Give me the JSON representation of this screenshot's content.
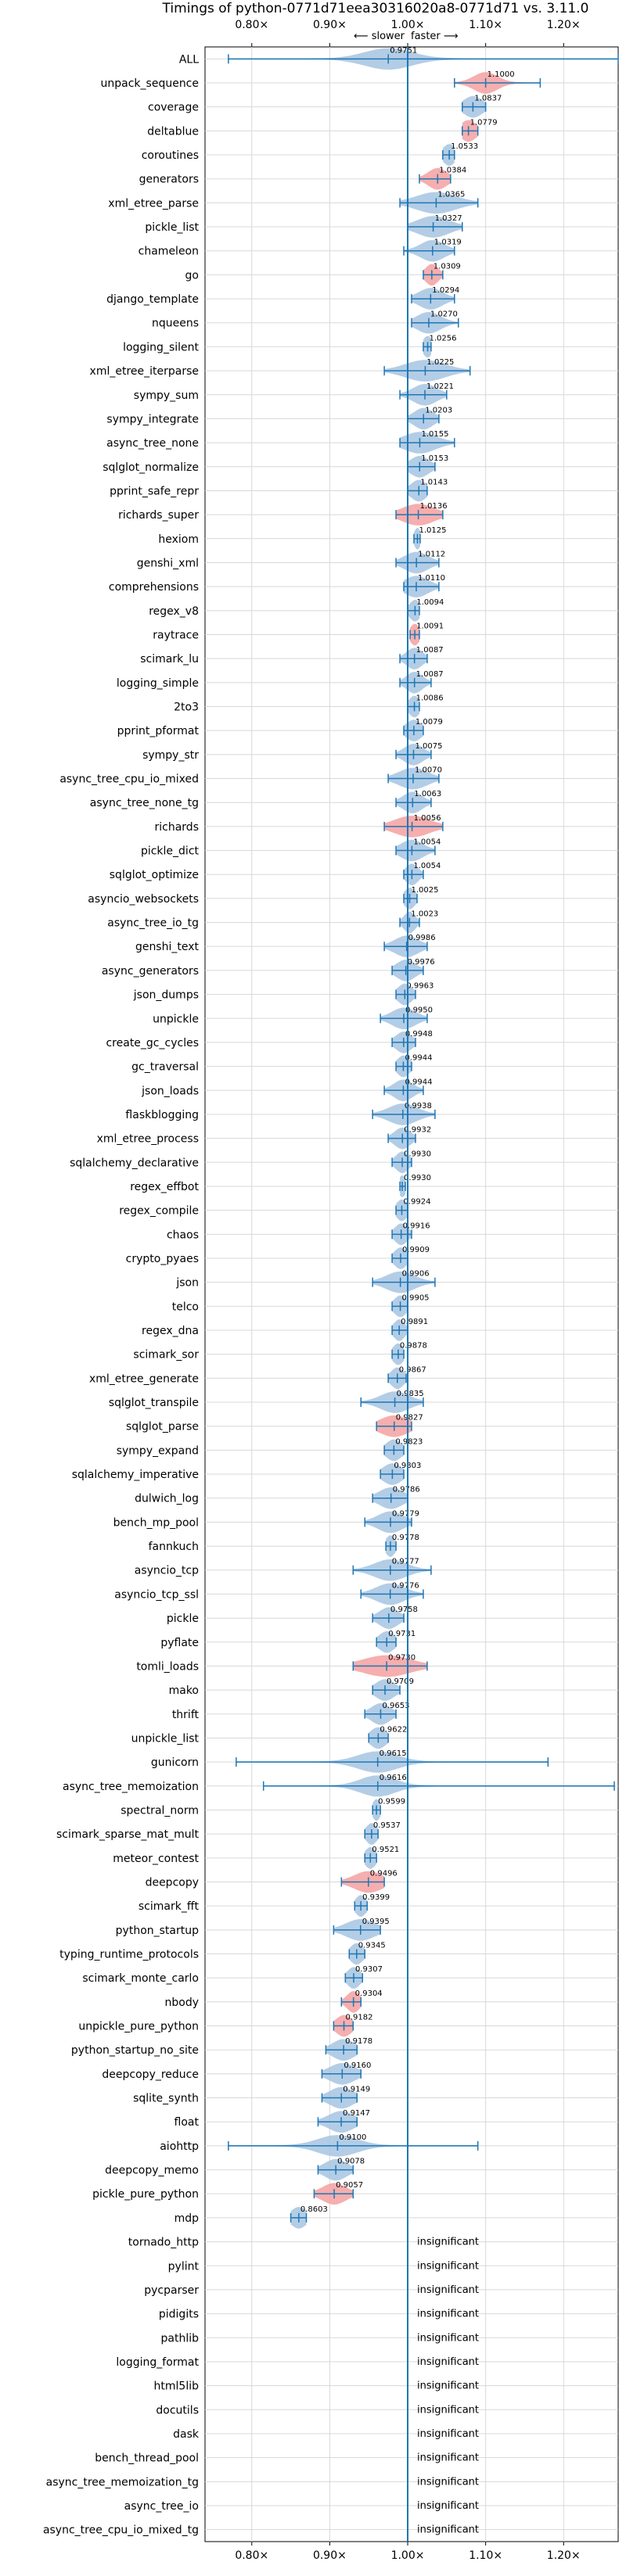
{
  "chart_data": {
    "type": "violin",
    "title": "Timings of python-0771d71eea30316020a8-0771d71 vs. 3.11.0",
    "direction_slower": "⟵ slower",
    "direction_faster": "faster ⟶",
    "xlim": [
      0.74,
      1.27
    ],
    "xticks": [
      0.8,
      0.9,
      1.0,
      1.1,
      1.2
    ],
    "xtick_labels": [
      "0.80×",
      "0.90×",
      "1.00×",
      "1.10×",
      "1.20×"
    ],
    "grid": true,
    "colors": {
      "normal": "#a6c4e2",
      "regression": "#f4a0a0",
      "line": "#1f77b4",
      "reference": "#1f77b4",
      "grid": "#d8d8d8",
      "text": "#000000"
    },
    "insignificant_label": "insignificant",
    "benchmarks": [
      {
        "name": "ALL",
        "value": 0.9751,
        "label": "0.9751",
        "lo": 0.77,
        "hi": 1.27,
        "spread": 0.03
      },
      {
        "name": "unpack_sequence",
        "value": 1.1,
        "label": "1.1000",
        "lo": 1.06,
        "hi": 1.17,
        "spread": 0.015,
        "regression": true
      },
      {
        "name": "coverage",
        "value": 1.0837,
        "label": "1.0837",
        "lo": 1.07,
        "hi": 1.1,
        "spread": 0.012
      },
      {
        "name": "deltablue",
        "value": 1.0779,
        "label": "1.0779",
        "lo": 1.07,
        "hi": 1.09,
        "spread": 0.01,
        "regression": true
      },
      {
        "name": "coroutines",
        "value": 1.0533,
        "label": "1.0533",
        "lo": 1.045,
        "hi": 1.06,
        "spread": 0.008
      },
      {
        "name": "generators",
        "value": 1.0384,
        "label": "1.0384",
        "lo": 1.015,
        "hi": 1.055,
        "spread": 0.012,
        "regression": true
      },
      {
        "name": "xml_etree_parse",
        "value": 1.0365,
        "label": "1.0365",
        "lo": 0.99,
        "hi": 1.09,
        "spread": 0.025
      },
      {
        "name": "pickle_list",
        "value": 1.0327,
        "label": "1.0327",
        "lo": 1.0,
        "hi": 1.07,
        "spread": 0.02
      },
      {
        "name": "chameleon",
        "value": 1.0319,
        "label": "1.0319",
        "lo": 0.995,
        "hi": 1.06,
        "spread": 0.015
      },
      {
        "name": "go",
        "value": 1.0309,
        "label": "1.0309",
        "lo": 1.02,
        "hi": 1.045,
        "spread": 0.008,
        "regression": true
      },
      {
        "name": "django_template",
        "value": 1.0294,
        "label": "1.0294",
        "lo": 1.005,
        "hi": 1.06,
        "spread": 0.015
      },
      {
        "name": "nqueens",
        "value": 1.027,
        "label": "1.0270",
        "lo": 1.005,
        "hi": 1.065,
        "spread": 0.015
      },
      {
        "name": "logging_silent",
        "value": 1.0256,
        "label": "1.0256",
        "lo": 1.02,
        "hi": 1.03,
        "spread": 0.006
      },
      {
        "name": "xml_etree_iterparse",
        "value": 1.0225,
        "label": "1.0225",
        "lo": 0.97,
        "hi": 1.08,
        "spread": 0.025
      },
      {
        "name": "sympy_sum",
        "value": 1.0221,
        "label": "1.0221",
        "lo": 0.99,
        "hi": 1.05,
        "spread": 0.015
      },
      {
        "name": "sympy_integrate",
        "value": 1.0203,
        "label": "1.0203",
        "lo": 1.0,
        "hi": 1.04,
        "spread": 0.012
      },
      {
        "name": "async_tree_none",
        "value": 1.0155,
        "label": "1.0155",
        "lo": 0.99,
        "hi": 1.06,
        "spread": 0.02
      },
      {
        "name": "sqlglot_normalize",
        "value": 1.0153,
        "label": "1.0153",
        "lo": 1.0,
        "hi": 1.035,
        "spread": 0.012
      },
      {
        "name": "pprint_safe_repr",
        "value": 1.0143,
        "label": "1.0143",
        "lo": 1.0,
        "hi": 1.025,
        "spread": 0.01
      },
      {
        "name": "richards_super",
        "value": 1.0136,
        "label": "1.0136",
        "lo": 0.985,
        "hi": 1.045,
        "spread": 0.02,
        "regression": true
      },
      {
        "name": "hexiom",
        "value": 1.0125,
        "label": "1.0125",
        "lo": 1.008,
        "hi": 1.016,
        "spread": 0.004
      },
      {
        "name": "genshi_xml",
        "value": 1.0112,
        "label": "1.0112",
        "lo": 0.985,
        "hi": 1.04,
        "spread": 0.015
      },
      {
        "name": "comprehensions",
        "value": 1.011,
        "label": "1.0110",
        "lo": 0.995,
        "hi": 1.04,
        "spread": 0.015
      },
      {
        "name": "regex_v8",
        "value": 1.0094,
        "label": "1.0094",
        "lo": 1.0,
        "hi": 1.015,
        "spread": 0.007
      },
      {
        "name": "raytrace",
        "value": 1.0091,
        "label": "1.0091",
        "lo": 1.003,
        "hi": 1.015,
        "spread": 0.006,
        "regression": true
      },
      {
        "name": "scimark_lu",
        "value": 1.0087,
        "label": "1.0087",
        "lo": 0.99,
        "hi": 1.025,
        "spread": 0.01
      },
      {
        "name": "logging_simple",
        "value": 1.0087,
        "label": "1.0087",
        "lo": 0.99,
        "hi": 1.03,
        "spread": 0.01
      },
      {
        "name": "2to3",
        "value": 1.0086,
        "label": "1.0086",
        "lo": 1.0,
        "hi": 1.015,
        "spread": 0.007
      },
      {
        "name": "pprint_pformat",
        "value": 1.0079,
        "label": "1.0079",
        "lo": 0.995,
        "hi": 1.02,
        "spread": 0.01
      },
      {
        "name": "sympy_str",
        "value": 1.0075,
        "label": "1.0075",
        "lo": 0.985,
        "hi": 1.03,
        "spread": 0.012
      },
      {
        "name": "async_tree_cpu_io_mixed",
        "value": 1.007,
        "label": "1.0070",
        "lo": 0.975,
        "hi": 1.04,
        "spread": 0.018
      },
      {
        "name": "async_tree_none_tg",
        "value": 1.0063,
        "label": "1.0063",
        "lo": 0.985,
        "hi": 1.03,
        "spread": 0.012
      },
      {
        "name": "richards",
        "value": 1.0056,
        "label": "1.0056",
        "lo": 0.97,
        "hi": 1.045,
        "spread": 0.022,
        "regression": true
      },
      {
        "name": "pickle_dict",
        "value": 1.0054,
        "label": "1.0054",
        "lo": 0.985,
        "hi": 1.035,
        "spread": 0.014
      },
      {
        "name": "sqlglot_optimize",
        "value": 1.0054,
        "label": "1.0054",
        "lo": 0.995,
        "hi": 1.02,
        "spread": 0.008
      },
      {
        "name": "asyncio_websockets",
        "value": 1.0025,
        "label": "1.0025",
        "lo": 0.995,
        "hi": 1.012,
        "spread": 0.007
      },
      {
        "name": "async_tree_io_tg",
        "value": 1.0023,
        "label": "1.0023",
        "lo": 0.99,
        "hi": 1.015,
        "spread": 0.007
      },
      {
        "name": "genshi_text",
        "value": 0.9986,
        "label": "0.9986",
        "lo": 0.97,
        "hi": 1.025,
        "spread": 0.015
      },
      {
        "name": "async_generators",
        "value": 0.9976,
        "label": "0.9976",
        "lo": 0.98,
        "hi": 1.02,
        "spread": 0.012
      },
      {
        "name": "json_dumps",
        "value": 0.9963,
        "label": "0.9963",
        "lo": 0.985,
        "hi": 1.01,
        "spread": 0.009
      },
      {
        "name": "unpickle",
        "value": 0.995,
        "label": "0.9950",
        "lo": 0.965,
        "hi": 1.025,
        "spread": 0.015
      },
      {
        "name": "create_gc_cycles",
        "value": 0.9948,
        "label": "0.9948",
        "lo": 0.98,
        "hi": 1.01,
        "spread": 0.01
      },
      {
        "name": "gc_traversal",
        "value": 0.9944,
        "label": "0.9944",
        "lo": 0.985,
        "hi": 1.005,
        "spread": 0.008
      },
      {
        "name": "json_loads",
        "value": 0.9944,
        "label": "0.9944",
        "lo": 0.97,
        "hi": 1.02,
        "spread": 0.012
      },
      {
        "name": "flaskblogging",
        "value": 0.9938,
        "label": "0.9938",
        "lo": 0.955,
        "hi": 1.035,
        "spread": 0.018
      },
      {
        "name": "xml_etree_process",
        "value": 0.9932,
        "label": "0.9932",
        "lo": 0.975,
        "hi": 1.01,
        "spread": 0.01
      },
      {
        "name": "sqlalchemy_declarative",
        "value": 0.993,
        "label": "0.9930",
        "lo": 0.98,
        "hi": 1.005,
        "spread": 0.008
      },
      {
        "name": "regex_effbot",
        "value": 0.993,
        "label": "0.9930",
        "lo": 0.99,
        "hi": 0.997,
        "spread": 0.005
      },
      {
        "name": "regex_compile",
        "value": 0.9924,
        "label": "0.9924",
        "lo": 0.985,
        "hi": 1.0,
        "spread": 0.007
      },
      {
        "name": "chaos",
        "value": 0.9916,
        "label": "0.9916",
        "lo": 0.98,
        "hi": 1.005,
        "spread": 0.008
      },
      {
        "name": "crypto_pyaes",
        "value": 0.9909,
        "label": "0.9909",
        "lo": 0.98,
        "hi": 1.0,
        "spread": 0.008
      },
      {
        "name": "json",
        "value": 0.9906,
        "label": "0.9906",
        "lo": 0.955,
        "hi": 1.035,
        "spread": 0.018
      },
      {
        "name": "telco",
        "value": 0.9905,
        "label": "0.9905",
        "lo": 0.98,
        "hi": 1.0,
        "spread": 0.008
      },
      {
        "name": "regex_dna",
        "value": 0.9891,
        "label": "0.9891",
        "lo": 0.98,
        "hi": 1.0,
        "spread": 0.007
      },
      {
        "name": "scimark_sor",
        "value": 0.9878,
        "label": "0.9878",
        "lo": 0.98,
        "hi": 0.995,
        "spread": 0.007
      },
      {
        "name": "xml_etree_generate",
        "value": 0.9867,
        "label": "0.9867",
        "lo": 0.975,
        "hi": 0.998,
        "spread": 0.008
      },
      {
        "name": "sqlglot_transpile",
        "value": 0.9835,
        "label": "0.9835",
        "lo": 0.94,
        "hi": 1.02,
        "spread": 0.018
      },
      {
        "name": "sqlglot_parse",
        "value": 0.9827,
        "label": "0.9827",
        "lo": 0.96,
        "hi": 1.005,
        "spread": 0.018,
        "regression": true
      },
      {
        "name": "sympy_expand",
        "value": 0.9823,
        "label": "0.9823",
        "lo": 0.97,
        "hi": 0.995,
        "spread": 0.01
      },
      {
        "name": "sqlalchemy_imperative",
        "value": 0.9803,
        "label": "0.9803",
        "lo": 0.965,
        "hi": 0.995,
        "spread": 0.012
      },
      {
        "name": "dulwich_log",
        "value": 0.9786,
        "label": "0.9786",
        "lo": 0.955,
        "hi": 1.0,
        "spread": 0.015
      },
      {
        "name": "bench_mp_pool",
        "value": 0.9779,
        "label": "0.9779",
        "lo": 0.945,
        "hi": 1.005,
        "spread": 0.016
      },
      {
        "name": "fannkuch",
        "value": 0.9778,
        "label": "0.9778",
        "lo": 0.972,
        "hi": 0.985,
        "spread": 0.006
      },
      {
        "name": "asyncio_tcp",
        "value": 0.9777,
        "label": "0.9777",
        "lo": 0.93,
        "hi": 1.03,
        "spread": 0.02
      },
      {
        "name": "asyncio_tcp_ssl",
        "value": 0.9776,
        "label": "0.9776",
        "lo": 0.94,
        "hi": 1.02,
        "spread": 0.018
      },
      {
        "name": "pickle",
        "value": 0.9758,
        "label": "0.9758",
        "lo": 0.955,
        "hi": 0.995,
        "spread": 0.012
      },
      {
        "name": "pyflate",
        "value": 0.9731,
        "label": "0.9731",
        "lo": 0.96,
        "hi": 0.985,
        "spread": 0.01
      },
      {
        "name": "tomli_loads",
        "value": 0.973,
        "label": "0.9730",
        "lo": 0.93,
        "hi": 1.025,
        "spread": 0.03,
        "regression": true
      },
      {
        "name": "mako",
        "value": 0.9709,
        "label": "0.9709",
        "lo": 0.955,
        "hi": 0.99,
        "spread": 0.012
      },
      {
        "name": "thrift",
        "value": 0.9653,
        "label": "0.9653",
        "lo": 0.945,
        "hi": 0.985,
        "spread": 0.012
      },
      {
        "name": "unpickle_list",
        "value": 0.9622,
        "label": "0.9622",
        "lo": 0.95,
        "hi": 0.975,
        "spread": 0.01
      },
      {
        "name": "gunicorn",
        "value": 0.9615,
        "label": "0.9615",
        "lo": 0.78,
        "hi": 1.18,
        "spread": 0.025
      },
      {
        "name": "async_tree_memoization",
        "value": 0.9616,
        "label": "0.9616",
        "lo": 0.815,
        "hi": 1.265,
        "spread": 0.022
      },
      {
        "name": "spectral_norm",
        "value": 0.9599,
        "label": "0.9599",
        "lo": 0.955,
        "hi": 0.965,
        "spread": 0.005
      },
      {
        "name": "scimark_sparse_mat_mult",
        "value": 0.9537,
        "label": "0.9537",
        "lo": 0.945,
        "hi": 0.962,
        "spread": 0.007
      },
      {
        "name": "meteor_contest",
        "value": 0.9521,
        "label": "0.9521",
        "lo": 0.945,
        "hi": 0.96,
        "spread": 0.007
      },
      {
        "name": "deepcopy",
        "value": 0.9496,
        "label": "0.9496",
        "lo": 0.915,
        "hi": 0.97,
        "spread": 0.018,
        "regression": true
      },
      {
        "name": "scimark_fft",
        "value": 0.9399,
        "label": "0.9399",
        "lo": 0.932,
        "hi": 0.948,
        "spread": 0.007
      },
      {
        "name": "python_startup",
        "value": 0.9395,
        "label": "0.9395",
        "lo": 0.905,
        "hi": 0.965,
        "spread": 0.018
      },
      {
        "name": "typing_runtime_protocols",
        "value": 0.9345,
        "label": "0.9345",
        "lo": 0.925,
        "hi": 0.945,
        "spread": 0.008
      },
      {
        "name": "scimark_monte_carlo",
        "value": 0.9307,
        "label": "0.9307",
        "lo": 0.92,
        "hi": 0.942,
        "spread": 0.008
      },
      {
        "name": "nbody",
        "value": 0.9304,
        "label": "0.9304",
        "lo": 0.915,
        "hi": 0.94,
        "spread": 0.008,
        "regression": true
      },
      {
        "name": "unpickle_pure_python",
        "value": 0.9182,
        "label": "0.9182",
        "lo": 0.905,
        "hi": 0.93,
        "spread": 0.01,
        "regression": true
      },
      {
        "name": "python_startup_no_site",
        "value": 0.9178,
        "label": "0.9178",
        "lo": 0.895,
        "hi": 0.935,
        "spread": 0.014
      },
      {
        "name": "deepcopy_reduce",
        "value": 0.916,
        "label": "0.9160",
        "lo": 0.89,
        "hi": 0.94,
        "spread": 0.016
      },
      {
        "name": "sqlite_synth",
        "value": 0.9149,
        "label": "0.9149",
        "lo": 0.89,
        "hi": 0.935,
        "spread": 0.015
      },
      {
        "name": "float",
        "value": 0.9147,
        "label": "0.9147",
        "lo": 0.885,
        "hi": 0.935,
        "spread": 0.016
      },
      {
        "name": "aiohttp",
        "value": 0.91,
        "label": "0.9100",
        "lo": 0.77,
        "hi": 1.09,
        "spread": 0.025
      },
      {
        "name": "deepcopy_memo",
        "value": 0.9078,
        "label": "0.9078",
        "lo": 0.885,
        "hi": 0.93,
        "spread": 0.014
      },
      {
        "name": "pickle_pure_python",
        "value": 0.9057,
        "label": "0.9057",
        "lo": 0.88,
        "hi": 0.93,
        "spread": 0.015,
        "regression": true
      },
      {
        "name": "mdp",
        "value": 0.8603,
        "label": "0.8603",
        "lo": 0.85,
        "hi": 0.87,
        "spread": 0.01
      },
      {
        "name": "tornado_http",
        "insignificant": true
      },
      {
        "name": "pylint",
        "insignificant": true
      },
      {
        "name": "pycparser",
        "insignificant": true
      },
      {
        "name": "pidigits",
        "insignificant": true
      },
      {
        "name": "pathlib",
        "insignificant": true
      },
      {
        "name": "logging_format",
        "insignificant": true
      },
      {
        "name": "html5lib",
        "insignificant": true
      },
      {
        "name": "docutils",
        "insignificant": true
      },
      {
        "name": "dask",
        "insignificant": true
      },
      {
        "name": "bench_thread_pool",
        "insignificant": true
      },
      {
        "name": "async_tree_memoization_tg",
        "insignificant": true
      },
      {
        "name": "async_tree_io",
        "insignificant": true
      },
      {
        "name": "async_tree_cpu_io_mixed_tg",
        "insignificant": true
      }
    ]
  }
}
